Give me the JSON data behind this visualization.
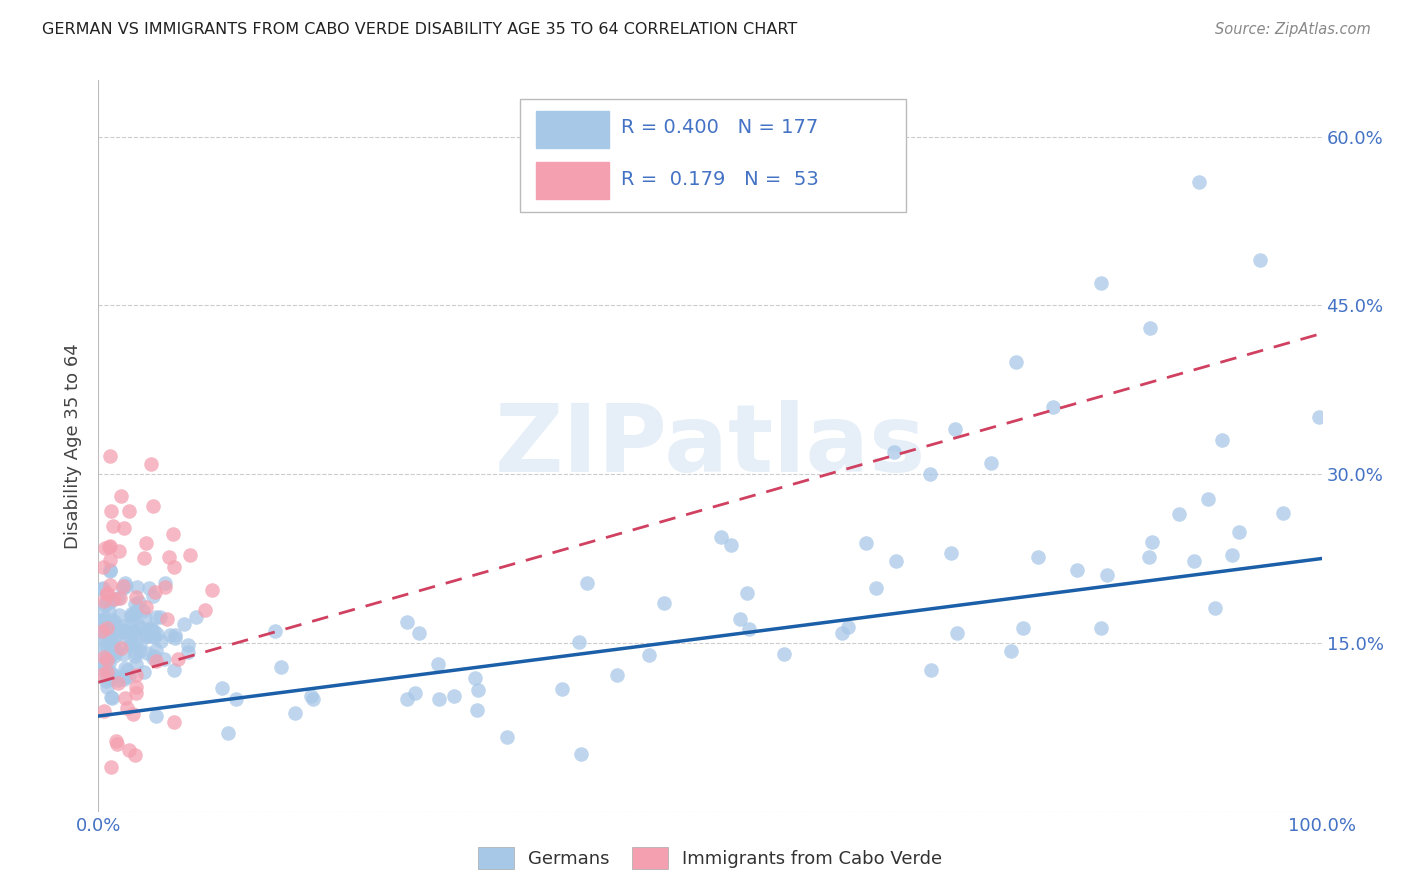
{
  "title": "GERMAN VS IMMIGRANTS FROM CABO VERDE DISABILITY AGE 35 TO 64 CORRELATION CHART",
  "source": "Source: ZipAtlas.com",
  "ylabel": "Disability Age 35 to 64",
  "xlim": [
    0.0,
    1.0
  ],
  "ylim": [
    0.0,
    0.65
  ],
  "xticks": [
    0.0,
    0.1,
    0.2,
    0.3,
    0.4,
    0.5,
    0.6,
    0.7,
    0.8,
    0.9,
    1.0
  ],
  "xticklabels": [
    "0.0%",
    "",
    "",
    "",
    "",
    "",
    "",
    "",
    "",
    "",
    "100.0%"
  ],
  "yticks": [
    0.0,
    0.15,
    0.3,
    0.45,
    0.6
  ],
  "yticklabels": [
    "",
    "15.0%",
    "30.0%",
    "45.0%",
    "60.0%"
  ],
  "german_color": "#a8c8e8",
  "cabo_color": "#f4a0b0",
  "german_line_color": "#1a5fa8",
  "cabo_line_color": "#d04060",
  "watermark": "ZIPatlas",
  "background_color": "#ffffff",
  "grid_color": "#cccccc",
  "tick_color": "#4472c4",
  "german_R": 0.4,
  "german_N": 177,
  "cabo_R": 0.179,
  "cabo_N": 53,
  "german_line_start_y": 0.085,
  "german_line_end_y": 0.225,
  "cabo_line_start_y": 0.115,
  "cabo_line_end_y": 0.425
}
